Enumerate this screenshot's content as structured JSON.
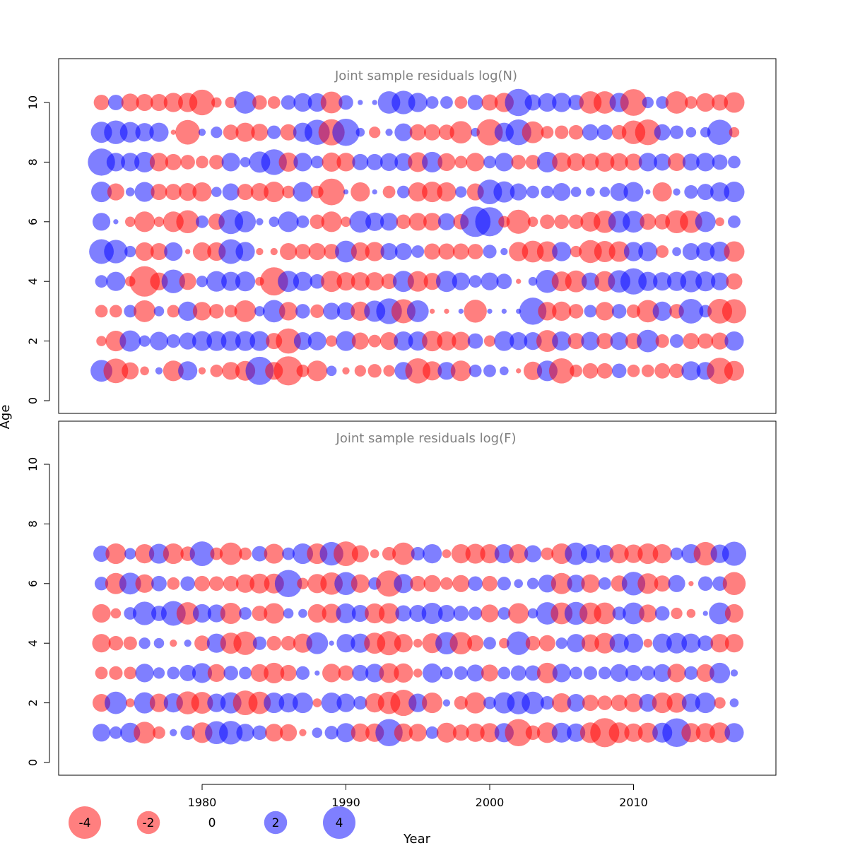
{
  "chart_data": {
    "type": "scatter",
    "subtype": "bubble",
    "xlabel": "Year",
    "ylabel": "Age",
    "x_ticks": [
      1980,
      1990,
      2000,
      2010
    ],
    "years": [
      1973,
      1974,
      1975,
      1976,
      1977,
      1978,
      1979,
      1980,
      1981,
      1982,
      1983,
      1984,
      1985,
      1986,
      1987,
      1988,
      1989,
      1990,
      1991,
      1992,
      1993,
      1994,
      1995,
      1996,
      1997,
      1998,
      1999,
      2000,
      2001,
      2002,
      2003,
      2004,
      2005,
      2006,
      2007,
      2008,
      2009,
      2010,
      2011,
      2012,
      2013,
      2014,
      2015,
      2016,
      2017
    ],
    "colors": {
      "negative": "#ff0000",
      "positive": "#0000ff",
      "opacity": 0.5
    },
    "panels": [
      {
        "title": "Joint sample residuals log(N)",
        "y_ticks": [
          0,
          2,
          4,
          6,
          8,
          10
        ],
        "ages": [
          1,
          2,
          3,
          4,
          5,
          6,
          7,
          8,
          9,
          10
        ],
        "residuals": [
          [
            1.8,
            -2.3,
            -1.1,
            -0.3,
            0.2,
            -1.6,
            1.4,
            -0.2,
            -0.6,
            -1.2,
            -1.5,
            3.0,
            -1.2,
            -3.2,
            -0.6,
            -1.6,
            0.4,
            -0.2,
            -0.5,
            -0.7,
            -0.5,
            1.2,
            -2.4,
            -1.4,
            1.2,
            -1.6,
            0.6,
            0.6,
            0.3,
            -0.1,
            -1.3,
            1.6,
            -2.4,
            -0.6,
            -0.9,
            -0.9,
            0.8,
            -0.6,
            -0.6,
            -0.9,
            -0.8,
            1.4,
            1.2,
            -2.6,
            -1.5
          ],
          [
            -0.4,
            -1.6,
            1.7,
            0.5,
            1.3,
            0.7,
            1.1,
            1.5,
            1.5,
            1.5,
            1.5,
            1.5,
            -1.0,
            -2.4,
            1.2,
            1.3,
            -0.5,
            1.5,
            -1.1,
            -0.6,
            -1.2,
            1.4,
            1.4,
            -1.6,
            -1.4,
            -1.3,
            0.9,
            -0.5,
            1.5,
            1.2,
            1.2,
            -1.8,
            1.4,
            -1.0,
            1.3,
            -1.0,
            1.2,
            -1.0,
            1.9,
            -0.7,
            0.7,
            -1.0,
            -0.9,
            -1.1,
            1.4
          ],
          [
            -0.6,
            -0.6,
            0.6,
            -1.8,
            0.4,
            -0.6,
            1.4,
            -1.3,
            -0.8,
            -0.6,
            -1.8,
            0.4,
            1.9,
            -1.3,
            0.8,
            -0.7,
            1.1,
            1.2,
            -1.4,
            1.7,
            2.5,
            -2.2,
            1.8,
            -0.1,
            -0.1,
            0.1,
            -2.0,
            0.1,
            0.1,
            0.1,
            2.8,
            -1.3,
            -1.4,
            -0.8,
            0.6,
            -1.3,
            0.8,
            -0.7,
            -1.9,
            1.4,
            -0.8,
            2.3,
            0.6,
            -2.3,
            -2.2
          ],
          [
            0.6,
            1.4,
            -0.4,
            -3.5,
            -1.2,
            2.1,
            -1.1,
            0.5,
            1.6,
            1.4,
            1.5,
            -0.3,
            -3.0,
            1.7,
            1.4,
            0.8,
            -1.7,
            -1.3,
            -1.3,
            -1.3,
            -0.9,
            1.7,
            -1.6,
            -1.1,
            1.7,
            1.2,
            0.6,
            1.2,
            0.9,
            -0.1,
            0.3,
            2.0,
            -1.5,
            -1.8,
            1.2,
            -1.6,
            1.9,
            2.6,
            1.4,
            1.3,
            1.4,
            1.8,
            1.5,
            1.2,
            -1.0
          ],
          [
            2.3,
            2.1,
            0.5,
            -1.3,
            -1.1,
            1.3,
            -0.1,
            -1.3,
            -1.3,
            2.3,
            1.4,
            -0.2,
            -0.2,
            -1.1,
            -0.9,
            -1.1,
            -0.9,
            1.8,
            -1.3,
            -1.4,
            1.1,
            1.1,
            0.6,
            -1.0,
            -1.0,
            -1.0,
            -0.9,
            0.7,
            0.2,
            -1.4,
            -1.8,
            -1.6,
            1.4,
            -0.5,
            -2.0,
            -1.7,
            -1.6,
            1.4,
            1.4,
            -0.6,
            0.3,
            1.1,
            1.3,
            1.5,
            -1.6
          ],
          [
            1.2,
            0.1,
            -0.4,
            -1.6,
            -0.4,
            -1.6,
            -2.0,
            0.6,
            -1.0,
            2.3,
            1.7,
            0.2,
            0.4,
            1.6,
            0.6,
            -0.8,
            -1.6,
            -0.4,
            1.8,
            1.3,
            1.2,
            -0.8,
            -1.2,
            -1.2,
            1.1,
            -0.9,
            3.5,
            3.2,
            -0.5,
            -2.2,
            -0.4,
            -0.8,
            -0.8,
            -0.8,
            -1.5,
            -1.9,
            1.8,
            1.8,
            -1.0,
            -0.9,
            -2.0,
            -1.9,
            1.6,
            -0.3,
            0.6
          ],
          [
            1.6,
            -1.1,
            0.3,
            1.5,
            -1.0,
            -1.0,
            -1.2,
            -1.4,
            0.4,
            1.1,
            -1.0,
            -1.2,
            -1.6,
            -0.6,
            1.5,
            -0.6,
            -2.7,
            0.1,
            -1.4,
            0.1,
            -0.6,
            0.6,
            -1.4,
            -1.6,
            -1.4,
            0.5,
            -1.1,
            2.3,
            1.7,
            1.1,
            0.6,
            0.6,
            1.2,
            0.4,
            0.3,
            0.4,
            1.2,
            1.5,
            0.1,
            -1.4,
            0.2,
            0.7,
            1.0,
            1.4,
            1.6
          ],
          [
            2.8,
            1.3,
            1.3,
            1.6,
            -1.3,
            -1.0,
            -0.8,
            -0.6,
            -0.8,
            1.3,
            0.4,
            1.7,
            2.5,
            -1.4,
            1.3,
            0.6,
            -1.4,
            -1.3,
            1.0,
            1.0,
            1.2,
            1.2,
            -1.5,
            1.6,
            -1.2,
            -0.6,
            -1.3,
            0.6,
            1.3,
            -0.8,
            -0.8,
            1.6,
            -1.4,
            -1.2,
            -1.1,
            -1.4,
            -1.2,
            -1.1,
            1.3,
            1.1,
            -1.2,
            1.1,
            1.3,
            0.9,
            0.6
          ],
          [
            1.7,
            2.1,
            1.6,
            1.3,
            1.4,
            -0.1,
            -2.3,
            0.2,
            0.5,
            -0.9,
            -1.4,
            -1.1,
            0.7,
            -1.0,
            1.4,
            2.4,
            -2.6,
            2.8,
            0.3,
            -0.5,
            0.2,
            1.2,
            -1.0,
            -1.0,
            -0.9,
            -1.9,
            0.3,
            -2.6,
            1.4,
            2.5,
            -1.8,
            -0.6,
            -0.7,
            -0.8,
            1.0,
            0.9,
            -0.8,
            -2.1,
            -2.5,
            1.0,
            0.7,
            0.4,
            0.4,
            2.4,
            -0.4
          ],
          [
            -0.9,
            0.9,
            -1.2,
            -1.1,
            -1.1,
            -1.4,
            -1.4,
            -2.5,
            -0.4,
            -0.5,
            1.9,
            -0.8,
            -0.6,
            0.8,
            1.3,
            1.3,
            -1.8,
            0.8,
            0.1,
            0.1,
            1.9,
            2.1,
            1.4,
            0.6,
            0.6,
            -0.6,
            0.9,
            -1.0,
            -1.4,
            2.8,
            1.0,
            1.3,
            1.4,
            0.9,
            -1.9,
            -1.9,
            1.4,
            -2.7,
            0.5,
            0.6,
            -1.9,
            -0.6,
            -1.3,
            -1.0,
            -1.6
          ]
        ]
      },
      {
        "title": "Joint sample residuals log(F)",
        "y_ticks": [
          0,
          2,
          4,
          6,
          8,
          10
        ],
        "ages": [
          1,
          2,
          3,
          4,
          5,
          6,
          7
        ],
        "residuals": [
          [
            1.2,
            0.6,
            1.5,
            -1.8,
            -0.6,
            0.2,
            0.8,
            -1.6,
            2.0,
            2.1,
            1.2,
            0.8,
            -1.2,
            -1.1,
            -0.2,
            0.4,
            0.7,
            1.4,
            -1.3,
            -1.3,
            2.8,
            -1.3,
            -1.2,
            0.6,
            -1.5,
            -1.0,
            -1.3,
            -1.4,
            1.4,
            -2.8,
            -0.8,
            -1.6,
            1.5,
            1.3,
            -1.6,
            -3.2,
            -1.6,
            -1.3,
            -1.5,
            1.5,
            3.1,
            -1.4,
            -1.4,
            -1.6,
            1.4
          ],
          [
            -1.2,
            1.9,
            -0.3,
            1.7,
            -1.3,
            1.4,
            -2.0,
            -1.8,
            1.3,
            1.7,
            -2.3,
            -1.9,
            1.6,
            1.4,
            1.6,
            -0.3,
            1.6,
            1.3,
            0.7,
            -1.4,
            -1.9,
            -2.6,
            1.3,
            -1.6,
            0.2,
            -0.7,
            -1.7,
            0.6,
            1.7,
            2.0,
            1.9,
            0.7,
            -1.4,
            1.2,
            -1.0,
            -0.8,
            -1.0,
            -1.3,
            1.2,
            -1.6,
            -1.5,
            1.3,
            1.6,
            -0.5,
            0.3
          ],
          [
            -0.6,
            -0.7,
            -0.6,
            1.3,
            0.5,
            0.6,
            1.0,
            1.5,
            -1.2,
            0.8,
            0.6,
            -1.2,
            -1.6,
            -1.0,
            0.7,
            0.1,
            -1.3,
            -0.9,
            1.0,
            1.3,
            -1.5,
            -1.4,
            -0.3,
            1.4,
            0.6,
            0.7,
            1.1,
            -1.1,
            0.6,
            0.9,
            0.9,
            -1.6,
            1.3,
            0.6,
            0.7,
            0.6,
            1.2,
            1.0,
            0.8,
            1.2,
            -1.3,
            0.7,
            -1.2,
            1.6,
            0.2
          ],
          [
            -1.3,
            -0.8,
            -0.7,
            0.5,
            0.4,
            -0.2,
            0.2,
            -0.9,
            1.4,
            -1.7,
            -2.1,
            0.7,
            -0.8,
            -0.8,
            -1.4,
            1.8,
            0.1,
            1.3,
            1.4,
            -1.7,
            -2.2,
            -1.3,
            -0.3,
            -1.5,
            1.9,
            -1.9,
            -1.0,
            0.6,
            -0.4,
            2.1,
            -0.8,
            -1.0,
            0.5,
            1.3,
            -1.2,
            -1.6,
            1.4,
            1.4,
            -0.3,
            1.4,
            1.6,
            1.4,
            0.9,
            -1.3,
            -1.3
          ],
          [
            -1.3,
            -0.4,
            0.6,
            2.1,
            0.9,
            2.3,
            -1.9,
            1.3,
            1.2,
            -1.7,
            0.6,
            -0.9,
            -1.6,
            0.4,
            0.3,
            -1.3,
            -1.4,
            1.5,
            1.1,
            -1.5,
            -1.6,
            1.0,
            1.1,
            1.7,
            1.1,
            0.9,
            0.7,
            -1.2,
            0.6,
            -1.6,
            0.4,
            1.9,
            -1.8,
            2.0,
            -1.8,
            -1.8,
            0.7,
            1.8,
            -1.2,
            0.8,
            -0.5,
            -0.3,
            0.1,
            1.8,
            -1.3
          ],
          [
            0.7,
            -1.7,
            1.8,
            -1.3,
            0.9,
            -0.6,
            0.8,
            -0.9,
            -0.8,
            -0.9,
            -1.3,
            -1.5,
            -1.5,
            2.8,
            -0.5,
            -1.4,
            -1.9,
            2.0,
            -1.3,
            0.6,
            -2.6,
            1.4,
            -0.9,
            -1.1,
            -0.6,
            -1.1,
            0.8,
            -0.9,
            0.7,
            0.3,
            0.5,
            1.2,
            -1.7,
            1.2,
            -1.3,
            0.6,
            -1.0,
            2.1,
            -1.6,
            -1.0,
            1.1,
            -0.1,
            0.8,
            0.8,
            -2.0
          ],
          [
            1.0,
            -1.6,
            0.5,
            -1.4,
            1.5,
            -1.6,
            -0.8,
            2.3,
            -0.6,
            -1.9,
            -0.6,
            0.9,
            -1.5,
            0.6,
            1.6,
            -1.6,
            2.1,
            -2.3,
            -1.1,
            -0.3,
            -0.7,
            -1.9,
            0.7,
            1.4,
            -0.3,
            -1.4,
            -1.5,
            -1.4,
            1.4,
            -1.4,
            1.1,
            -0.6,
            -1.6,
            1.9,
            1.4,
            1.2,
            -1.4,
            -1.3,
            -1.6,
            -1.4,
            0.6,
            1.4,
            -2.1,
            1.3,
            2.2
          ]
        ]
      }
    ],
    "legend": {
      "values": [
        -4,
        -2,
        0,
        2,
        4
      ],
      "labels": [
        "-4",
        "-2",
        "0",
        "2",
        "4"
      ],
      "position": "bottom"
    }
  }
}
